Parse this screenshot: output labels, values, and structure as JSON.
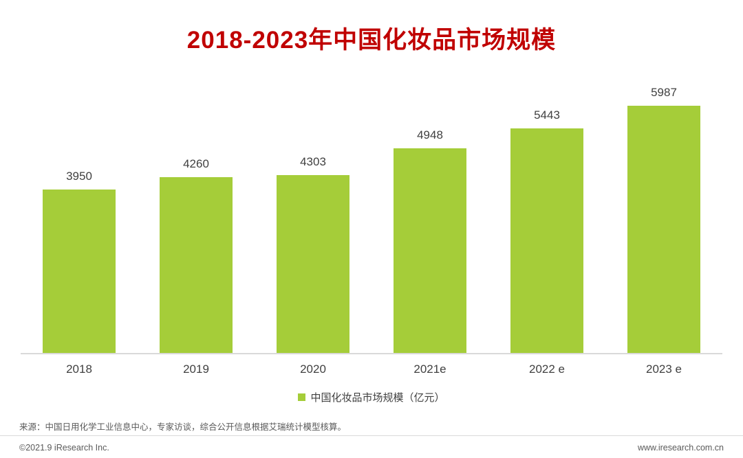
{
  "title": "2018-2023年中国化妆品市场规模",
  "colors": {
    "bar": "#a5cd39",
    "title": "#c00000",
    "axis": "#d9d9d9",
    "text": "#404040",
    "muted": "#595959"
  },
  "chart_data": {
    "type": "bar",
    "title": "2018-2023年中国化妆品市场规模",
    "categories": [
      "2018",
      "2019",
      "2020",
      "2021e",
      "2022 e",
      "2023 e"
    ],
    "values": [
      3950,
      4260,
      4303,
      4948,
      5443,
      5987
    ],
    "series_name": "中国化妆品市场规模（亿元）",
    "xlabel": "",
    "ylabel": "",
    "ylim": [
      0,
      6200
    ],
    "grid": false,
    "legend_position": "bottom-center",
    "bar_color": "#a5cd39"
  },
  "legend": {
    "label": "中国化妆品市场规模（亿元）"
  },
  "source_note": "来源：中国日用化学工业信息中心，专家访谈，综合公开信息根据艾瑞统计模型核算。",
  "footer": {
    "left": "©2021.9 iResearch Inc.",
    "right": "www.iresearch.com.cn"
  }
}
